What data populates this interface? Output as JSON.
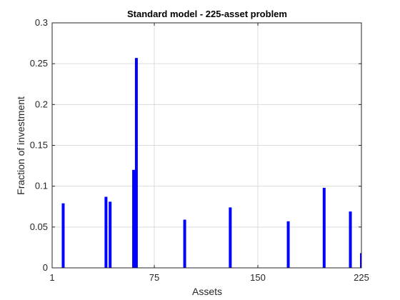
{
  "chart_data": {
    "type": "bar",
    "title": "Standard model - 225-asset problem",
    "xlabel": "Assets",
    "ylabel": "Fraction of investment",
    "xlim": [
      1,
      225
    ],
    "ylim": [
      0,
      0.3
    ],
    "xticks": [
      1,
      75,
      150,
      225
    ],
    "xtick_labels": [
      "1",
      "75",
      "150",
      "225"
    ],
    "yticks": [
      0,
      0.05,
      0.1,
      0.15,
      0.2,
      0.25,
      0.3
    ],
    "ytick_labels": [
      "0",
      "0.05",
      "0.1",
      "0.15",
      "0.2",
      "0.25",
      "0.3"
    ],
    "grid": true,
    "bar_color": "#0000ff",
    "series": [
      {
        "x": [
          9,
          40,
          43,
          60,
          62,
          97,
          130,
          172,
          198,
          217,
          225
        ],
        "values": [
          0.079,
          0.087,
          0.081,
          0.12,
          0.257,
          0.059,
          0.074,
          0.057,
          0.098,
          0.069,
          0.018
        ]
      }
    ]
  }
}
